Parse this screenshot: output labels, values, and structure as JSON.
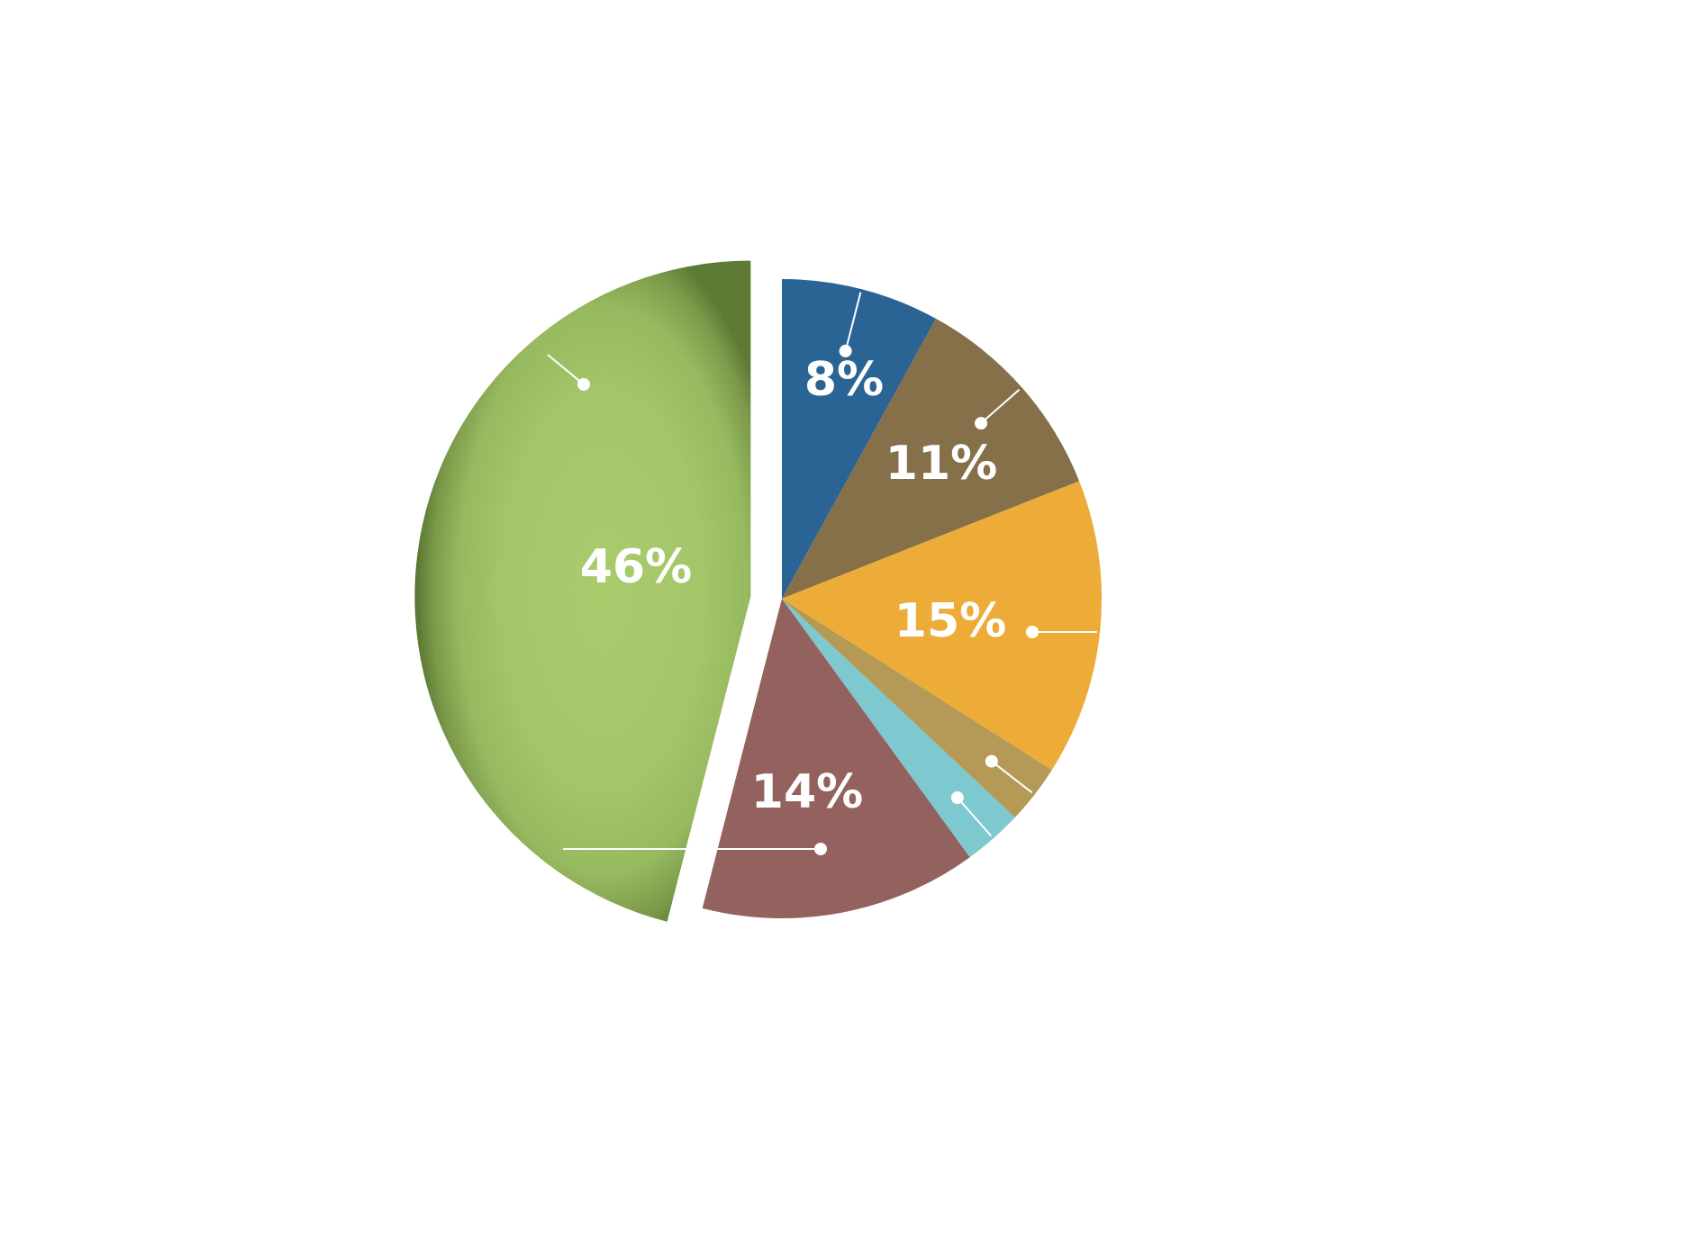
{
  "chart_data": {
    "type": "pie",
    "title": "",
    "slices": [
      {
        "label": "8%",
        "value": 8,
        "color": "#2a6494"
      },
      {
        "label": "11%",
        "value": 11,
        "color": "#85704a"
      },
      {
        "label": "15%",
        "value": 15,
        "color": "#ecac37"
      },
      {
        "label": "",
        "value": 3,
        "color": "#b49a56"
      },
      {
        "label": "",
        "value": 3,
        "color": "#7dc9cf"
      },
      {
        "label": "14%",
        "value": 14,
        "color": "#94625e"
      },
      {
        "label": "46%",
        "value": 46,
        "color": "#a6c96b",
        "exploded": true
      }
    ],
    "legend": "none"
  }
}
